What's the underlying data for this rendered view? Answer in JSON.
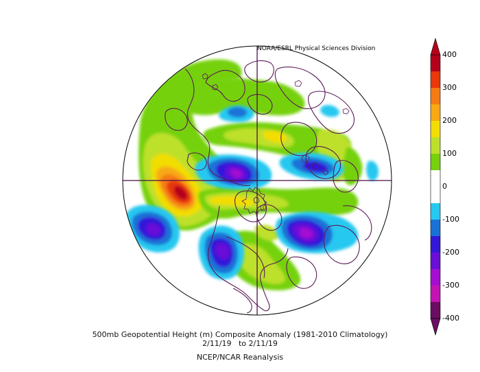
{
  "credit": "NOAA/ESRL Physical Sciences Division",
  "title_line1": "500mb Geopotential Height (m) Composite Anomaly (1981-2010 Climatology)",
  "date_start": "2/11/19",
  "date_sep": "to",
  "date_end": "2/11/19",
  "source": "NCEP/NCAR Reanalysis",
  "colorbar": {
    "labels": [
      "400",
      "300",
      "200",
      "100",
      "0",
      "-100",
      "-200",
      "-300",
      "-400"
    ],
    "colors": [
      "#b5001c",
      "#e8380c",
      "#f57b14",
      "#f7aa12",
      "#f2dd05",
      "#bde02a",
      "#76d10c",
      "#ffffff",
      "#ffffff",
      "#27c8f0",
      "#1a72d6",
      "#3318d9",
      "#6a0fd8",
      "#a40ed2",
      "#c513b3",
      "#6b0d62"
    ]
  },
  "map": {
    "projection": "polar-stereographic-north",
    "field": "500mb geopotential height anomaly",
    "units": "m"
  }
}
